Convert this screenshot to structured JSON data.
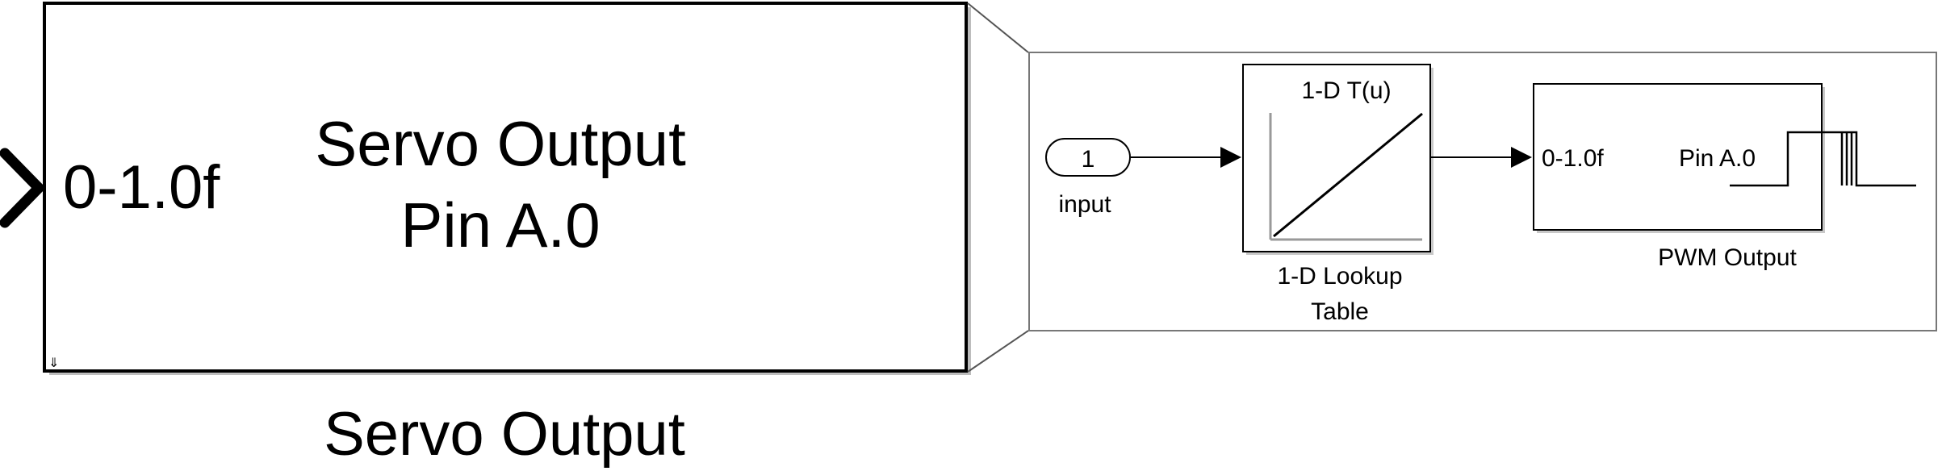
{
  "servo_block": {
    "port_label": "0-1.0f",
    "title_line1": "Servo Output",
    "title_line2": "Pin A.0",
    "caption": "Servo Output"
  },
  "subsystem": {
    "inport": {
      "number": "1",
      "label": "input"
    },
    "lookup_table": {
      "title": "1-D T(u)",
      "caption_line1": "1-D Lookup",
      "caption_line2": "Table"
    },
    "pwm_block": {
      "port_label": "0-1.0f",
      "pin_label": "Pin A.0",
      "caption": "PWM Output"
    }
  },
  "colors": {
    "line": "#000000",
    "grid": "#999999",
    "subsystem_border": "#777777"
  }
}
